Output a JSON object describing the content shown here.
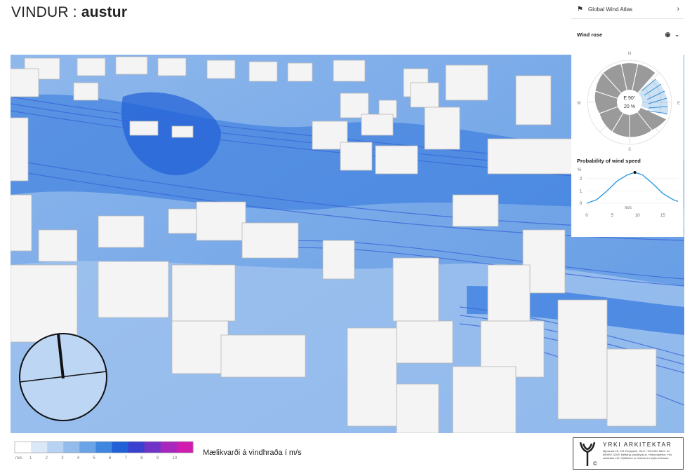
{
  "header": {
    "title_prefix": "VINDUR : ",
    "title_bold": "austur"
  },
  "side_panel": {
    "global_wind_atlas_label": "Global Wind Atlas",
    "wind_rose": {
      "title": "Wind rose",
      "directions": {
        "n": "N",
        "e": "E",
        "s": "S",
        "w": "W"
      },
      "center_direction": "E 90°",
      "center_percent": "20 %",
      "selected_sector": "E",
      "sector_color": "#9a9a9a",
      "selected_color": "#3a8fd6"
    },
    "wind_speed": {
      "title": "Probability of wind speed",
      "y_unit": "%",
      "x_unit": "m/s",
      "y_ticks": [
        "2",
        "1",
        "0"
      ],
      "x_ticks": [
        "0",
        "5",
        "10",
        "15"
      ]
    }
  },
  "legend": {
    "unit": "m/s",
    "ticks": [
      "1",
      "2",
      "3",
      "4",
      "5",
      "6",
      "7",
      "8",
      "9",
      "10"
    ],
    "caption": "Mælikvarði á vindhraða í m/s",
    "colors": [
      "#ffffff",
      "#dbe8f8",
      "#b8d3f2",
      "#93bbec",
      "#6aa3e6",
      "#3f86e0",
      "#2160d6",
      "#3a40cf",
      "#7034c6",
      "#a828bd",
      "#d11cb0"
    ]
  },
  "logo": {
    "name": "YRKI ARKITEKTAR",
    "address": "Mjóstræti 26, 101 Reykjavík. Sími: +354 552 6629. Kt: 560997-3109. Netfang: yrki@yrki.is. Höfundaréttur: Yrki arkitektar ehf. Fjölföldun er óheimil án leyfis höfundar.",
    "copyright": "©"
  },
  "chart_data": {
    "type": "line",
    "title": "Probability of wind speed",
    "xlabel": "m/s",
    "ylabel": "%",
    "xlim": [
      0,
      18
    ],
    "ylim": [
      0,
      2.5
    ],
    "series": [
      {
        "x": [
          0,
          2,
          4,
          6,
          8,
          9.5,
          11,
          13,
          15,
          17,
          18
        ],
        "y": [
          0.0,
          0.3,
          1.0,
          1.8,
          2.3,
          2.5,
          2.3,
          1.6,
          0.8,
          0.3,
          0.15
        ]
      }
    ],
    "highlight_point": {
      "x": 9.5,
      "y": 2.5
    }
  }
}
